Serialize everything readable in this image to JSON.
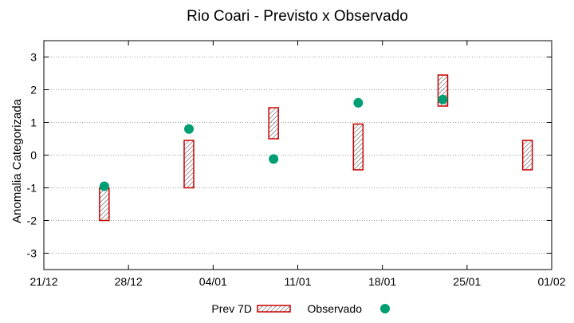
{
  "chart_data": {
    "type": "floating-bar-scatter",
    "title": "Rio Coari - Previsto x Observado",
    "ylabel": "Anomalia Categorizada",
    "xlabel": "",
    "x_tick_labels": [
      "21/12",
      "28/12",
      "04/01",
      "11/01",
      "18/01",
      "25/01",
      "01/02"
    ],
    "x_range": [
      "21/12",
      "01/02"
    ],
    "ylim": [
      -3.5,
      3.5
    ],
    "y_ticks": [
      -3,
      -2,
      -1,
      0,
      1,
      2,
      3
    ],
    "grid": "horizontal dotted",
    "legend_position": "bottom",
    "series": [
      {
        "name": "Prev 7D",
        "kind": "range-box",
        "color": "#cc0000",
        "points": [
          {
            "x": "26/12",
            "low": -2.0,
            "high": -1.0
          },
          {
            "x": "02/01",
            "low": -1.0,
            "high": 0.45
          },
          {
            "x": "09/01",
            "low": 0.5,
            "high": 1.45
          },
          {
            "x": "16/01",
            "low": -0.45,
            "high": 0.95
          },
          {
            "x": "23/01",
            "low": 1.5,
            "high": 2.45
          },
          {
            "x": "30/01",
            "low": -0.45,
            "high": 0.45
          }
        ]
      },
      {
        "name": "Observado",
        "kind": "point",
        "color": "#009e73",
        "points": [
          {
            "x": "26/12",
            "y": -0.95
          },
          {
            "x": "02/01",
            "y": 0.8
          },
          {
            "x": "09/01",
            "y": -0.12
          },
          {
            "x": "16/01",
            "y": 1.6
          },
          {
            "x": "23/01",
            "y": 1.7
          }
        ]
      }
    ]
  }
}
